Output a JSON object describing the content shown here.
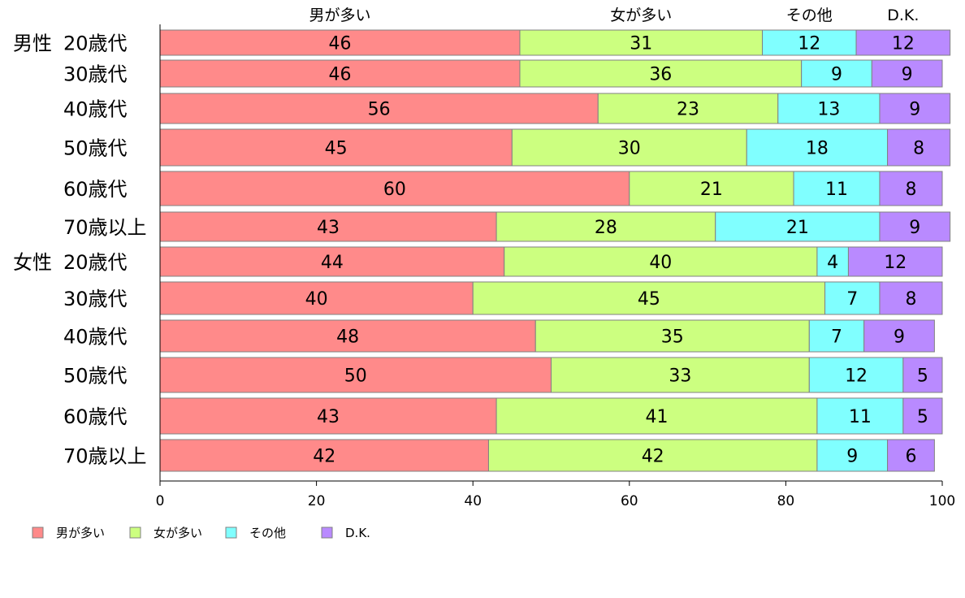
{
  "chart_data": {
    "type": "bar",
    "orientation": "horizontal",
    "stacked": true,
    "title": "",
    "xlabel": "",
    "ylabel": "",
    "xlim": [
      0,
      100
    ],
    "xticks": [
      0,
      20,
      40,
      60,
      80,
      100
    ],
    "grid": false,
    "legend_position": "bottom-left",
    "groups": [
      {
        "label": "男性",
        "first_index": 0
      },
      {
        "label": "女性",
        "first_index": 6
      }
    ],
    "categories": [
      "20歳代",
      "30歳代",
      "40歳代",
      "50歳代",
      "60歳代",
      "70歳以上",
      "20歳代",
      "30歳代",
      "40歳代",
      "50歳代",
      "60歳代",
      "70歳以上"
    ],
    "series": [
      {
        "name": "男が多い",
        "color": "#ff8a8a",
        "values": [
          46,
          46,
          56,
          45,
          60,
          43,
          44,
          40,
          48,
          50,
          43,
          42
        ]
      },
      {
        "name": "女が多い",
        "color": "#ccff80",
        "values": [
          31,
          36,
          23,
          30,
          21,
          28,
          40,
          45,
          35,
          33,
          41,
          42
        ]
      },
      {
        "name": "その他",
        "color": "#80ffff",
        "values": [
          12,
          9,
          13,
          18,
          11,
          21,
          4,
          7,
          7,
          12,
          11,
          9
        ]
      },
      {
        "name": "D.K.",
        "color": "#b98aff",
        "values": [
          12,
          9,
          9,
          8,
          8,
          9,
          12,
          8,
          9,
          5,
          5,
          6
        ]
      }
    ]
  }
}
